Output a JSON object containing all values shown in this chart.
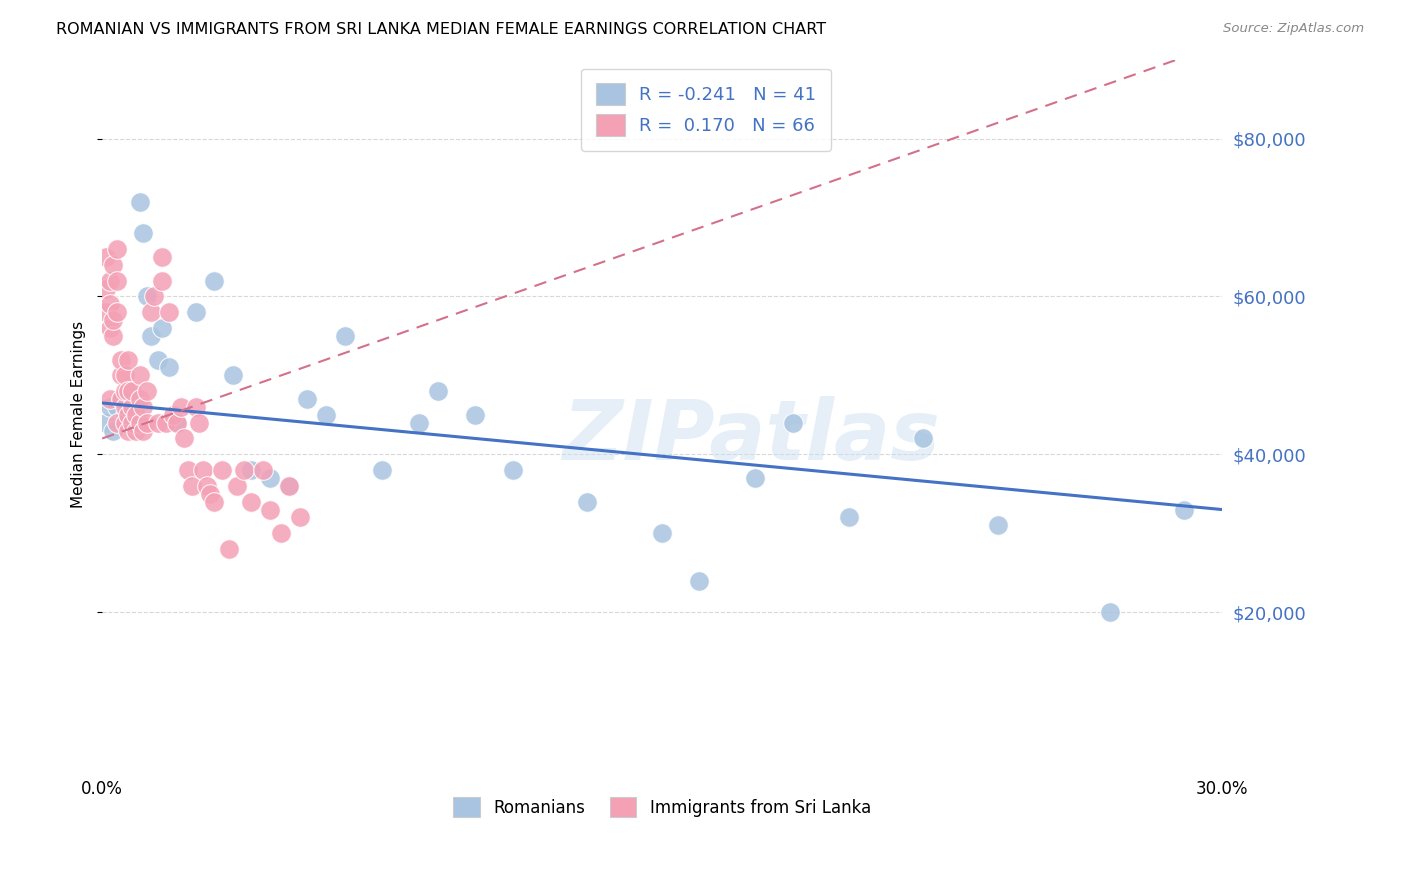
{
  "title": "ROMANIAN VS IMMIGRANTS FROM SRI LANKA MEDIAN FEMALE EARNINGS CORRELATION CHART",
  "source": "Source: ZipAtlas.com",
  "ylabel": "Median Female Earnings",
  "xlim": [
    0.0,
    0.3
  ],
  "ylim": [
    0,
    90000
  ],
  "yticks": [
    20000,
    40000,
    60000,
    80000
  ],
  "ytick_labels": [
    "$20,000",
    "$40,000",
    "$60,000",
    "$80,000"
  ],
  "xticks": [
    0.0,
    0.05,
    0.1,
    0.15,
    0.2,
    0.25,
    0.3
  ],
  "xtick_labels": [
    "0.0%",
    "",
    "",
    "",
    "",
    "",
    "30.0%"
  ],
  "background_color": "#ffffff",
  "grid_color": "#d8d8d8",
  "romanians_color": "#a8c4e0",
  "sri_lanka_color": "#f4a0b5",
  "trend_romanian_color": "#4472c4",
  "trend_sri_lanka_color": "#d4718a",
  "legend_r_romanian": "-0.241",
  "legend_n_romanian": "41",
  "legend_r_sri_lanka": "0.170",
  "legend_n_sri_lanka": "66",
  "watermark": "ZIPatlas",
  "romanians_x": [
    0.001,
    0.002,
    0.003,
    0.004,
    0.005,
    0.006,
    0.007,
    0.008,
    0.009,
    0.01,
    0.011,
    0.012,
    0.013,
    0.015,
    0.016,
    0.018,
    0.02,
    0.025,
    0.03,
    0.035,
    0.04,
    0.045,
    0.05,
    0.055,
    0.06,
    0.065,
    0.075,
    0.085,
    0.09,
    0.1,
    0.11,
    0.13,
    0.15,
    0.16,
    0.175,
    0.185,
    0.2,
    0.22,
    0.24,
    0.27,
    0.29
  ],
  "romanians_y": [
    44000,
    46000,
    43000,
    46000,
    47000,
    45000,
    44000,
    44000,
    46000,
    72000,
    68000,
    60000,
    55000,
    52000,
    56000,
    51000,
    44000,
    58000,
    62000,
    50000,
    38000,
    37000,
    36000,
    47000,
    45000,
    55000,
    38000,
    44000,
    48000,
    45000,
    38000,
    34000,
    30000,
    24000,
    37000,
    44000,
    32000,
    42000,
    31000,
    20000,
    33000
  ],
  "sri_lanka_x": [
    0.001,
    0.001,
    0.001,
    0.002,
    0.002,
    0.002,
    0.002,
    0.003,
    0.003,
    0.003,
    0.004,
    0.004,
    0.004,
    0.004,
    0.005,
    0.005,
    0.005,
    0.006,
    0.006,
    0.006,
    0.006,
    0.007,
    0.007,
    0.007,
    0.007,
    0.008,
    0.008,
    0.008,
    0.009,
    0.009,
    0.01,
    0.01,
    0.01,
    0.011,
    0.011,
    0.012,
    0.012,
    0.013,
    0.014,
    0.015,
    0.016,
    0.016,
    0.017,
    0.018,
    0.019,
    0.02,
    0.021,
    0.022,
    0.023,
    0.024,
    0.025,
    0.026,
    0.027,
    0.028,
    0.029,
    0.03,
    0.032,
    0.034,
    0.036,
    0.038,
    0.04,
    0.043,
    0.045,
    0.048,
    0.05,
    0.053
  ],
  "sri_lanka_y": [
    58000,
    61000,
    65000,
    56000,
    59000,
    62000,
    47000,
    55000,
    57000,
    64000,
    44000,
    58000,
    62000,
    66000,
    47000,
    50000,
    52000,
    46000,
    48000,
    50000,
    44000,
    43000,
    45000,
    48000,
    52000,
    44000,
    46000,
    48000,
    43000,
    45000,
    44000,
    47000,
    50000,
    43000,
    46000,
    44000,
    48000,
    58000,
    60000,
    44000,
    62000,
    65000,
    44000,
    58000,
    45000,
    44000,
    46000,
    42000,
    38000,
    36000,
    46000,
    44000,
    38000,
    36000,
    35000,
    34000,
    38000,
    28000,
    36000,
    38000,
    34000,
    38000,
    33000,
    30000,
    36000,
    32000
  ]
}
